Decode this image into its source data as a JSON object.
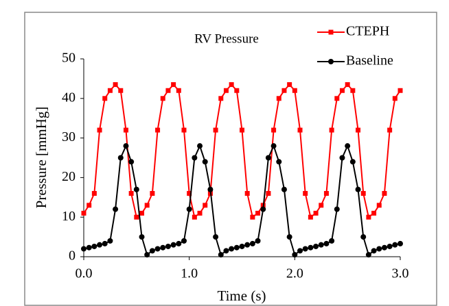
{
  "chart_data": {
    "type": "line",
    "title": "RV Pressure",
    "x_label": "Time (s)",
    "y_label": "Pressure [mmHg]",
    "x": [
      0,
      0.05,
      0.1,
      0.15,
      0.2,
      0.25,
      0.3,
      0.35,
      0.4,
      0.45,
      0.5,
      0.55,
      0.6,
      0.65,
      0.7,
      0.75,
      0.8,
      0.85,
      0.9,
      0.95,
      1,
      1.05,
      1.1,
      1.15,
      1.2,
      1.25,
      1.3,
      1.35,
      1.4,
      1.45,
      1.5,
      1.55,
      1.6,
      1.65,
      1.7,
      1.75,
      1.8,
      1.85,
      1.9,
      1.95,
      2,
      2.05,
      2.1,
      2.15,
      2.2,
      2.25,
      2.3,
      2.35,
      2.4,
      2.45,
      2.5,
      2.55,
      2.6,
      2.65,
      2.7,
      2.75,
      2.8,
      2.85,
      2.9,
      2.95,
      3
    ],
    "series": [
      {
        "name": "CTEPH",
        "color": "#ff0000",
        "marker": "square",
        "values": [
          11,
          13,
          16,
          32,
          40,
          42,
          43.5,
          42,
          32,
          16,
          10,
          11,
          13,
          16,
          32,
          40,
          42,
          43.5,
          42,
          32,
          16,
          10,
          11,
          13,
          16,
          32,
          40,
          42,
          43.5,
          42,
          32,
          16,
          10,
          11,
          13,
          16,
          32,
          40,
          42,
          43.5,
          42,
          32,
          16,
          10,
          11,
          13,
          16,
          32,
          40,
          42,
          43.5,
          42,
          32,
          16,
          10,
          11,
          13,
          16,
          32,
          40,
          42
        ]
      },
      {
        "name": "Baseline",
        "color": "#000000",
        "marker": "circle",
        "values": [
          2,
          2.3,
          2.6,
          3,
          3.3,
          4,
          12,
          25,
          28,
          24,
          17,
          5,
          0.5,
          1.5,
          2,
          2.3,
          2.6,
          3,
          3.3,
          4,
          12,
          25,
          28,
          24,
          17,
          5,
          0.5,
          1.5,
          2,
          2.3,
          2.6,
          3,
          3.3,
          4,
          12,
          25,
          28,
          24,
          17,
          5,
          0.5,
          1.5,
          2,
          2.3,
          2.6,
          3,
          3.3,
          4,
          12,
          25,
          28,
          24,
          17,
          5,
          0.5,
          1.5,
          2,
          2.3,
          2.6,
          3,
          3.3
        ]
      }
    ],
    "xlim": [
      0,
      3
    ],
    "ylim": [
      0,
      50
    ],
    "xticks": [
      {
        "value": 0,
        "label": "0.0"
      },
      {
        "value": 1,
        "label": "1.0"
      },
      {
        "value": 2,
        "label": "2.0"
      },
      {
        "value": 3,
        "label": "3.0"
      }
    ],
    "yticks": [
      0,
      10,
      20,
      30,
      40,
      50
    ],
    "grid": false,
    "legend": "top-right"
  }
}
